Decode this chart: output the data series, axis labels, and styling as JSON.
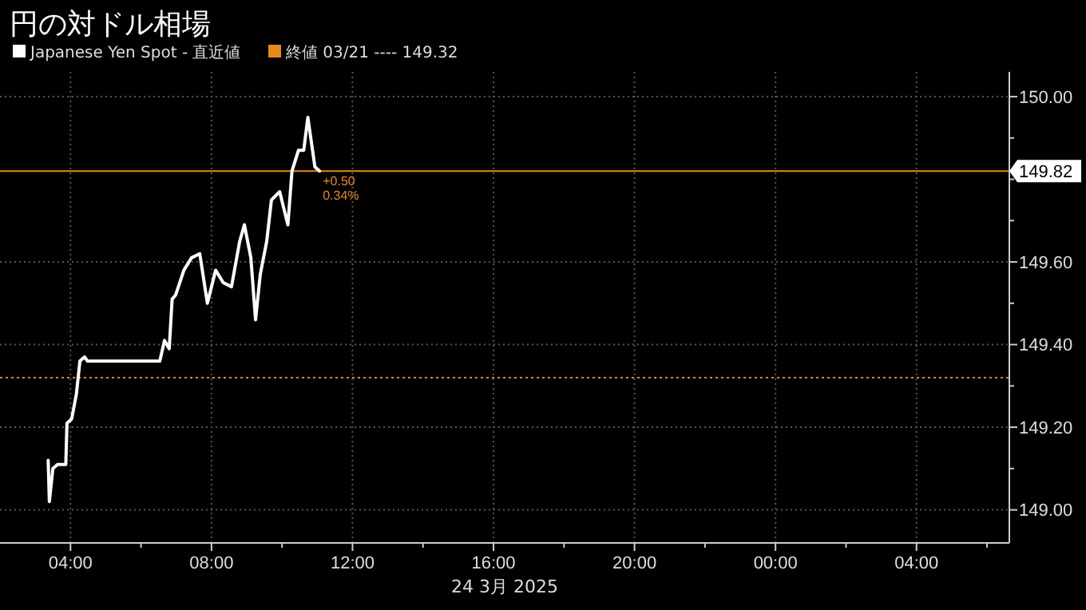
{
  "chart_data": {
    "type": "line",
    "title": "円の対ドル相場",
    "xlabel": "24 3月 2025",
    "legend": "top left",
    "grid": true,
    "line_style": "solid",
    "marker": "none",
    "xlim": [
      "2025-03-24T02:00",
      "2025-03-25T06:38"
    ],
    "ylim": [
      148.92,
      150.06
    ],
    "xticks": [
      {
        "value": "2025-03-24T04:00",
        "label": "04:00"
      },
      {
        "value": "2025-03-24T06:00",
        "label": null
      },
      {
        "value": "2025-03-24T08:00",
        "label": "08:00"
      },
      {
        "value": "2025-03-24T10:00",
        "label": null
      },
      {
        "value": "2025-03-24T12:00",
        "label": "12:00"
      },
      {
        "value": "2025-03-24T14:00",
        "label": null
      },
      {
        "value": "2025-03-24T16:00",
        "label": "16:00"
      },
      {
        "value": "2025-03-24T18:00",
        "label": null
      },
      {
        "value": "2025-03-24T20:00",
        "label": "20:00"
      },
      {
        "value": "2025-03-24T22:00",
        "label": null
      },
      {
        "value": "2025-03-25T00:00",
        "label": "00:00"
      },
      {
        "value": "2025-03-25T02:00",
        "label": null
      },
      {
        "value": "2025-03-25T04:00",
        "label": "04:00"
      },
      {
        "value": "2025-03-25T06:00",
        "label": null
      }
    ],
    "yticks": [
      {
        "value": 149,
        "label": "149.00"
      },
      {
        "value": 149.1,
        "label": null
      },
      {
        "value": 149.2,
        "label": "149.20"
      },
      {
        "value": 149.3,
        "label": null
      },
      {
        "value": 149.4,
        "label": "149.40"
      },
      {
        "value": 149.5,
        "label": null
      },
      {
        "value": 149.6,
        "label": "149.60"
      },
      {
        "value": 149.7,
        "label": null
      },
      {
        "value": 149.8,
        "label": null
      },
      {
        "value": 149.9,
        "label": null
      },
      {
        "value": 150,
        "label": "150.00"
      }
    ],
    "series": [
      {
        "name": "Japanese Yen Spot - 直近値",
        "color": "#ffffff",
        "x": [
          "2025-03-24T03:22",
          "2025-03-24T03:24",
          "2025-03-24T03:30",
          "2025-03-24T03:38",
          "2025-03-24T03:52",
          "2025-03-24T03:54",
          "2025-03-24T04:02",
          "2025-03-24T04:10",
          "2025-03-24T04:16",
          "2025-03-24T04:24",
          "2025-03-24T04:29",
          "2025-03-24T05:24",
          "2025-03-24T06:32",
          "2025-03-24T06:40",
          "2025-03-24T06:48",
          "2025-03-24T06:53",
          "2025-03-24T06:59",
          "2025-03-24T07:13",
          "2025-03-24T07:26",
          "2025-03-24T07:40",
          "2025-03-24T07:53",
          "2025-03-24T08:07",
          "2025-03-24T08:20",
          "2025-03-24T08:34",
          "2025-03-24T08:48",
          "2025-03-24T08:56",
          "2025-03-24T09:07",
          "2025-03-24T09:15",
          "2025-03-24T09:23",
          "2025-03-24T09:34",
          "2025-03-24T09:42",
          "2025-03-24T09:56",
          "2025-03-24T10:10",
          "2025-03-24T10:17",
          "2025-03-24T10:28",
          "2025-03-24T10:37",
          "2025-03-24T10:44",
          "2025-03-24T10:50",
          "2025-03-24T10:56",
          "2025-03-24T11:04"
        ],
        "values": [
          149.12,
          149.02,
          149.1,
          149.11,
          149.11,
          149.21,
          149.22,
          149.28,
          149.36,
          149.37,
          149.36,
          149.36,
          149.36,
          149.41,
          149.39,
          149.51,
          149.52,
          149.58,
          149.61,
          149.62,
          149.5,
          149.58,
          149.55,
          149.54,
          149.65,
          149.69,
          149.61,
          149.46,
          149.57,
          149.65,
          149.75,
          149.77,
          149.69,
          149.82,
          149.87,
          149.87,
          149.95,
          149.89,
          149.83,
          149.82
        ]
      }
    ],
    "ref_lines": [
      {
        "axis": "y",
        "value": 149.32,
        "label": "終値 03/21 ---- 149.32",
        "color": "#e8891c",
        "line_style": "dotted"
      },
      {
        "axis": "y",
        "value": 149.82,
        "label": "149.82",
        "color": "#e8891c",
        "line_style": "solid"
      }
    ],
    "annotations": [
      {
        "text": "+0.50",
        "x": "2025-03-24T11:04",
        "y": 149.82
      },
      {
        "text": "0.34%",
        "x": "2025-03-24T11:04",
        "y": 149.82
      }
    ]
  }
}
